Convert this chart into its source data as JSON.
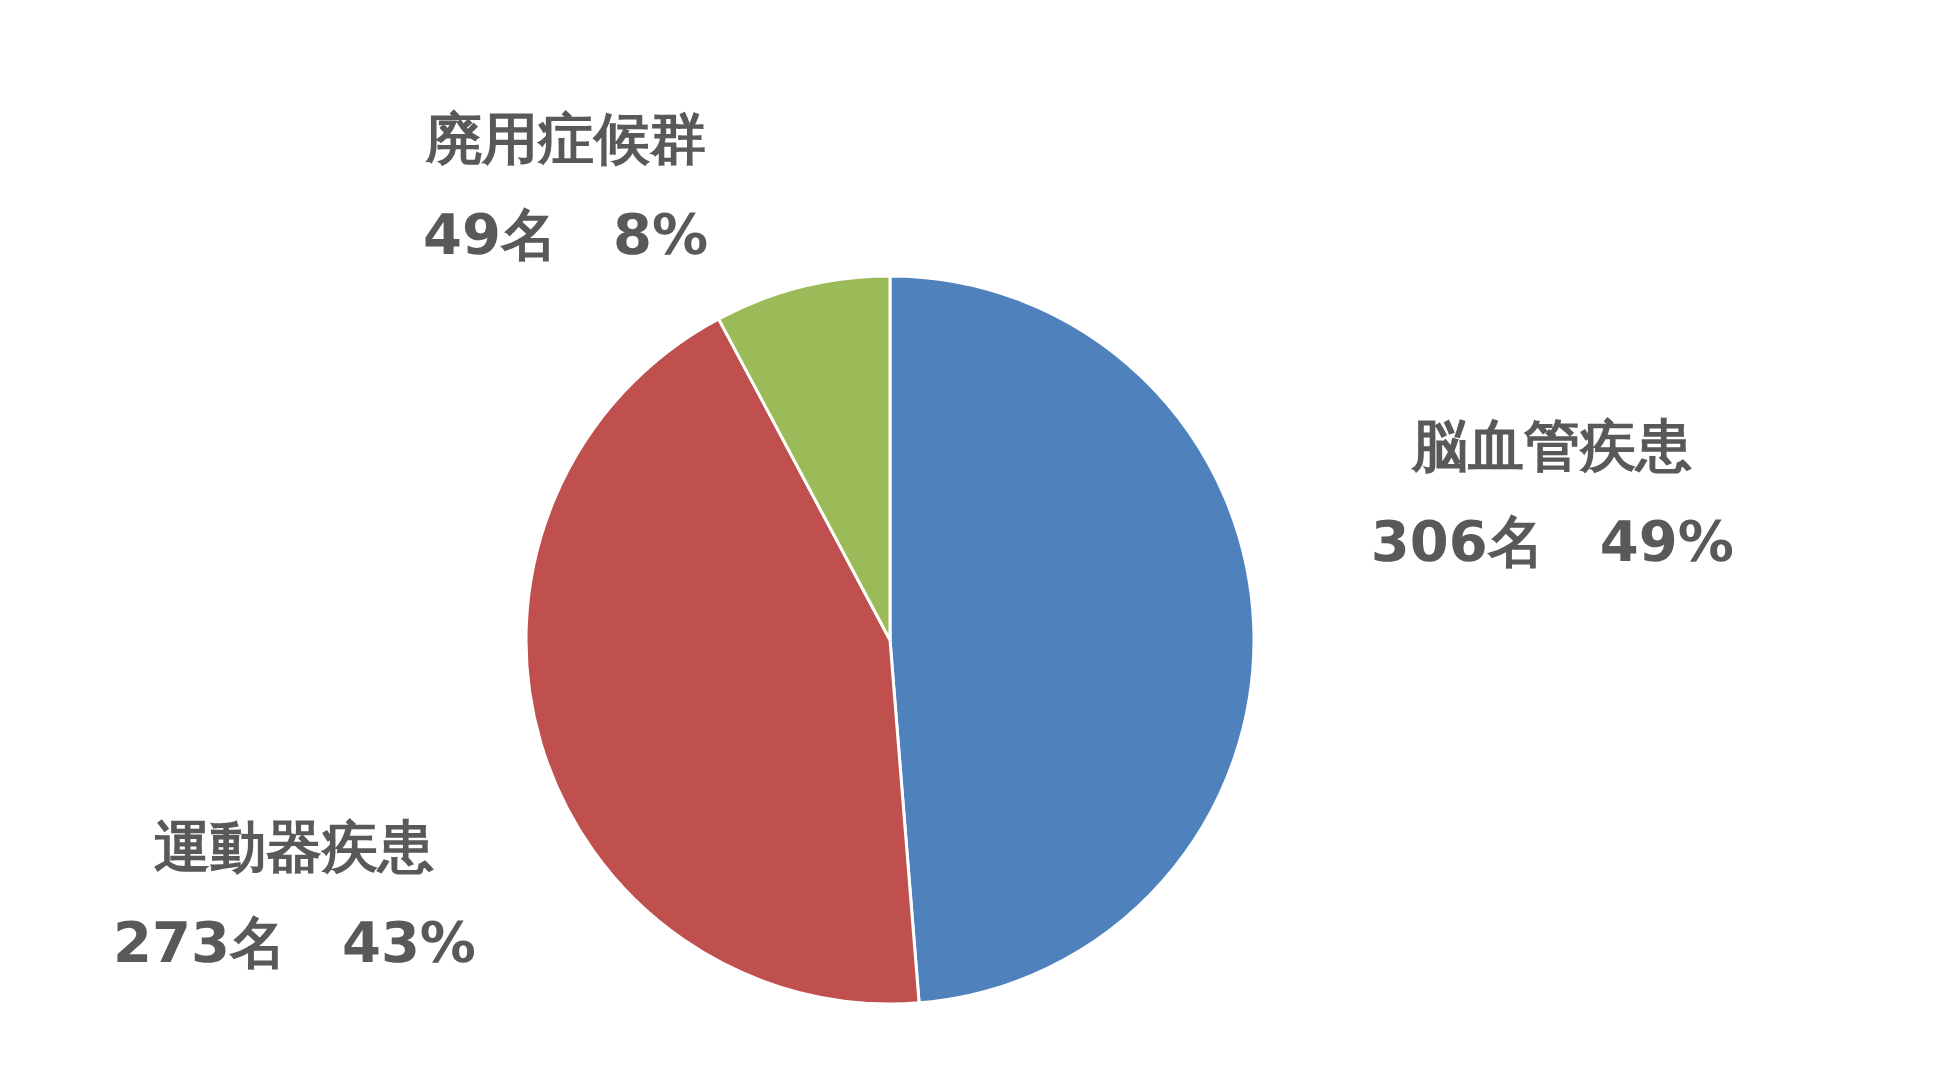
{
  "chart_data": {
    "type": "pie",
    "categories": [
      "脳血管疾患",
      "運動器疾患",
      "廃用症候群"
    ],
    "values": [
      306,
      273,
      49
    ],
    "colors": [
      "#4f81bd",
      "#c0504d",
      "#9bbb59"
    ],
    "value_labels": [
      "306名　49%",
      "273名　43%",
      "49名　8%"
    ]
  }
}
